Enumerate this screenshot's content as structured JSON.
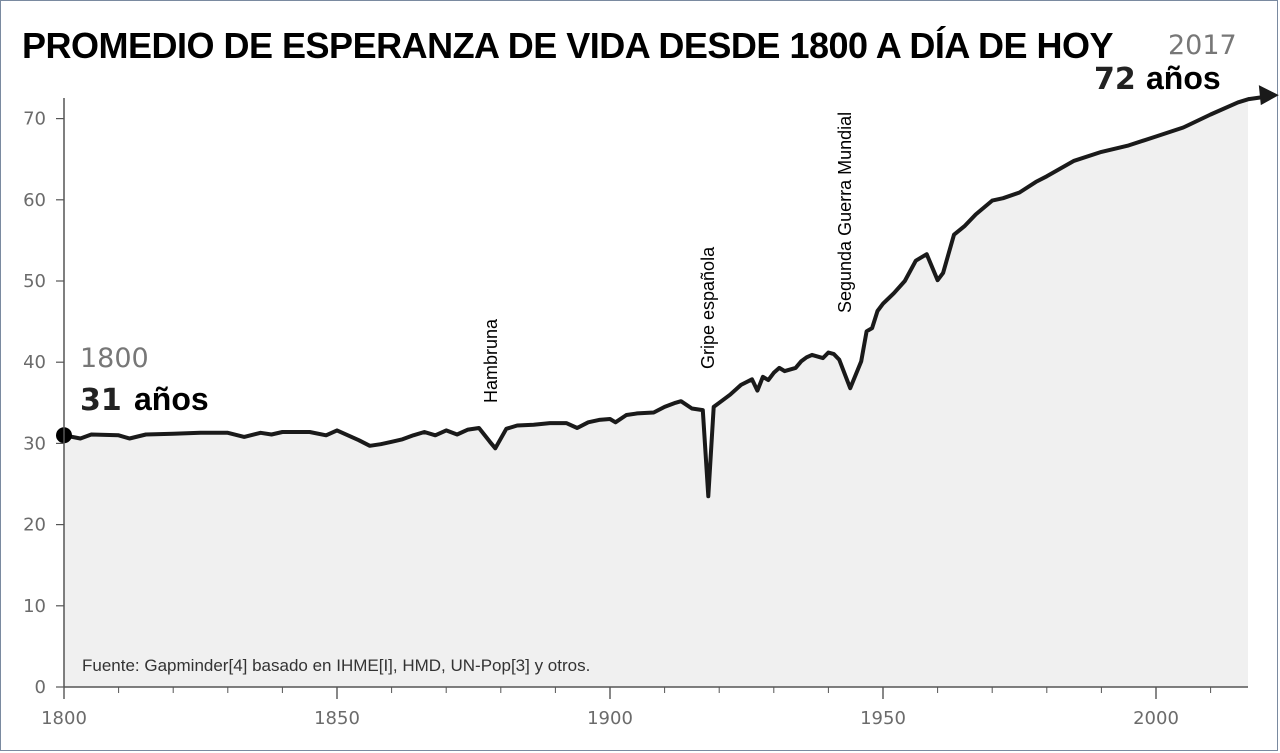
{
  "title": "PROMEDIO DE ESPERANZA DE VIDA DESDE 1800 A DÍA DE HOY",
  "source_note": "Fuente: Gapminder[4] basado en IHME[I], HMD, UN-Pop[3] y otros.",
  "start_callout": {
    "year": "1800",
    "value": "31",
    "unit": "años"
  },
  "end_callout": {
    "year": "2017",
    "value": "72",
    "unit": "años"
  },
  "events": [
    {
      "label": "Hambruna",
      "year": 1879
    },
    {
      "label": "Gripe española",
      "year": 1918
    },
    {
      "label": "Segunda Guerra Mundial",
      "year": 1944
    }
  ],
  "chart_data": {
    "type": "area",
    "title": "PROMEDIO DE ESPERANZA DE VIDA DESDE 1800 A DÍA DE HOY",
    "xlabel": "",
    "ylabel": "",
    "xlim": [
      1800,
      2017
    ],
    "ylim": [
      0,
      72
    ],
    "x_ticks": [
      1800,
      1850,
      1900,
      1950,
      2000
    ],
    "y_ticks": [
      0,
      10,
      20,
      30,
      40,
      50,
      60,
      70
    ],
    "grid": false,
    "fill_color": "#f0f0f0",
    "line_color": "#1a1a1a",
    "series": [
      {
        "x": [
          1800,
          1803,
          1805,
          1810,
          1812,
          1815,
          1820,
          1825,
          1830,
          1833,
          1836,
          1838,
          1840,
          1845,
          1848,
          1850,
          1852,
          1854,
          1856,
          1858,
          1860,
          1862,
          1864,
          1866,
          1868,
          1870,
          1872,
          1874,
          1876,
          1878,
          1879,
          1881,
          1883,
          1886,
          1889,
          1892,
          1894,
          1896,
          1898,
          1900,
          1901,
          1903,
          1905,
          1908,
          1910,
          1912,
          1913,
          1915,
          1917,
          1918,
          1919,
          1920,
          1922,
          1924,
          1926,
          1927,
          1928,
          1929,
          1930,
          1931,
          1932,
          1934,
          1935,
          1936,
          1937,
          1939,
          1940,
          1941,
          1942,
          1944,
          1946,
          1947,
          1948,
          1949,
          1950,
          1952,
          1954,
          1956,
          1958,
          1960,
          1961,
          1963,
          1965,
          1967,
          1970,
          1972,
          1975,
          1978,
          1980,
          1985,
          1990,
          1995,
          2000,
          2005,
          2010,
          2015,
          2017
        ],
        "y": [
          31,
          30.6,
          31.1,
          31,
          30.6,
          31.1,
          31.2,
          31.3,
          31.3,
          30.8,
          31.3,
          31.1,
          31.4,
          31.4,
          31.0,
          31.6,
          31.0,
          30.4,
          29.7,
          29.9,
          30.2,
          30.5,
          31.0,
          31.4,
          31.0,
          31.6,
          31.1,
          31.7,
          31.9,
          30.2,
          29.4,
          31.8,
          32.2,
          32.3,
          32.5,
          32.5,
          31.9,
          32.6,
          32.9,
          33.0,
          32.6,
          33.5,
          33.7,
          33.8,
          34.5,
          35.0,
          35.2,
          34.3,
          34.1,
          23.5,
          34.5,
          35.0,
          36.0,
          37.2,
          37.9,
          36.5,
          38.2,
          37.8,
          38.7,
          39.3,
          38.9,
          39.3,
          40.1,
          40.6,
          40.9,
          40.5,
          41.2,
          41.0,
          40.3,
          36.8,
          40.1,
          43.8,
          44.2,
          46.3,
          47.2,
          48.5,
          50.0,
          52.5,
          53.3,
          50.1,
          51.0,
          55.7,
          56.8,
          58.2,
          59.9,
          60.2,
          60.9,
          62.2,
          62.9,
          64.8,
          65.9,
          66.7,
          67.8,
          68.9,
          70.5,
          72.0,
          72.4
        ]
      }
    ]
  }
}
